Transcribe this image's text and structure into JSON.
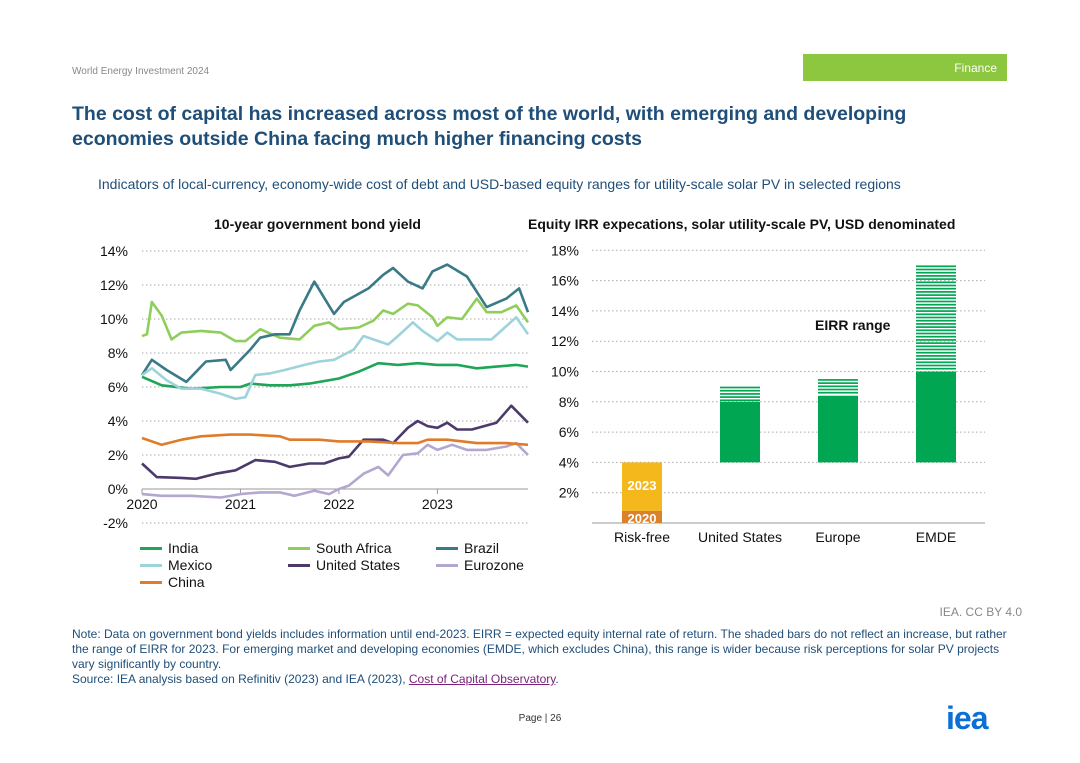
{
  "header": {
    "report": "World Energy Investment 2024",
    "section": "Finance"
  },
  "title": "The cost of capital has increased across most of the world, with emerging and developing economies outside China facing much higher financing costs",
  "subtitle": "Indicators of local-currency, economy-wide cost of debt and USD-based equity ranges for utility-scale solar PV in selected regions",
  "chart_data": [
    {
      "type": "line",
      "title": "10-year government bond yield",
      "ylim": [
        -2,
        14
      ],
      "yticks": [
        "14%",
        "12%",
        "10%",
        "8%",
        "6%",
        "4%",
        "2%",
        "0%",
        "-2%"
      ],
      "xticks": [
        "2020",
        "2021",
        "2022",
        "2023"
      ],
      "xlim": [
        2020,
        2023.92
      ],
      "series": [
        {
          "name": "India",
          "color": "#1ea557",
          "points": [
            [
              2020,
              6.6
            ],
            [
              2020.2,
              6.1
            ],
            [
              2020.5,
              5.9
            ],
            [
              2020.8,
              6.0
            ],
            [
              2021,
              6.0
            ],
            [
              2021.1,
              6.2
            ],
            [
              2021.3,
              6.1
            ],
            [
              2021.5,
              6.1
            ],
            [
              2021.7,
              6.2
            ],
            [
              2022,
              6.5
            ],
            [
              2022.2,
              6.9
            ],
            [
              2022.4,
              7.4
            ],
            [
              2022.6,
              7.3
            ],
            [
              2022.8,
              7.4
            ],
            [
              2023,
              7.3
            ],
            [
              2023.2,
              7.3
            ],
            [
              2023.4,
              7.1
            ],
            [
              2023.6,
              7.2
            ],
            [
              2023.8,
              7.3
            ],
            [
              2023.92,
              7.2
            ]
          ]
        },
        {
          "name": "South Africa",
          "color": "#8fce5c",
          "points": [
            [
              2020,
              9.0
            ],
            [
              2020.05,
              9.1
            ],
            [
              2020.1,
              11.0
            ],
            [
              2020.2,
              10.2
            ],
            [
              2020.3,
              8.8
            ],
            [
              2020.4,
              9.2
            ],
            [
              2020.6,
              9.3
            ],
            [
              2020.8,
              9.2
            ],
            [
              2020.95,
              8.7
            ],
            [
              2021.05,
              8.7
            ],
            [
              2021.2,
              9.4
            ],
            [
              2021.4,
              8.9
            ],
            [
              2021.6,
              8.8
            ],
            [
              2021.75,
              9.6
            ],
            [
              2021.9,
              9.8
            ],
            [
              2022,
              9.4
            ],
            [
              2022.2,
              9.5
            ],
            [
              2022.35,
              9.9
            ],
            [
              2022.45,
              10.5
            ],
            [
              2022.55,
              10.3
            ],
            [
              2022.7,
              10.9
            ],
            [
              2022.8,
              10.8
            ],
            [
              2022.95,
              10.1
            ],
            [
              2023,
              9.6
            ],
            [
              2023.1,
              10.1
            ],
            [
              2023.25,
              10.0
            ],
            [
              2023.4,
              11.2
            ],
            [
              2023.5,
              10.4
            ],
            [
              2023.65,
              10.4
            ],
            [
              2023.8,
              10.8
            ],
            [
              2023.92,
              9.8
            ]
          ]
        },
        {
          "name": "Brazil",
          "color": "#3a7a86",
          "points": [
            [
              2020,
              6.7
            ],
            [
              2020.1,
              7.6
            ],
            [
              2020.25,
              7.0
            ],
            [
              2020.45,
              6.3
            ],
            [
              2020.65,
              7.5
            ],
            [
              2020.85,
              7.6
            ],
            [
              2020.9,
              7.0
            ],
            [
              2021.1,
              8.2
            ],
            [
              2021.2,
              8.9
            ],
            [
              2021.35,
              9.1
            ],
            [
              2021.5,
              9.1
            ],
            [
              2021.6,
              10.5
            ],
            [
              2021.75,
              12.2
            ],
            [
              2021.95,
              10.3
            ],
            [
              2022.05,
              11.0
            ],
            [
              2022.3,
              11.8
            ],
            [
              2022.45,
              12.6
            ],
            [
              2022.55,
              13.0
            ],
            [
              2022.7,
              12.2
            ],
            [
              2022.85,
              11.8
            ],
            [
              2022.95,
              12.8
            ],
            [
              2023.1,
              13.2
            ],
            [
              2023.3,
              12.5
            ],
            [
              2023.5,
              10.7
            ],
            [
              2023.7,
              11.2
            ],
            [
              2023.83,
              11.8
            ],
            [
              2023.92,
              10.4
            ]
          ]
        },
        {
          "name": "Mexico",
          "color": "#9fd3dc",
          "points": [
            [
              2020,
              6.7
            ],
            [
              2020.1,
              7.1
            ],
            [
              2020.25,
              6.4
            ],
            [
              2020.4,
              5.9
            ],
            [
              2020.6,
              5.9
            ],
            [
              2020.8,
              5.6
            ],
            [
              2020.95,
              5.3
            ],
            [
              2021.05,
              5.4
            ],
            [
              2021.15,
              6.7
            ],
            [
              2021.3,
              6.8
            ],
            [
              2021.45,
              7.0
            ],
            [
              2021.65,
              7.3
            ],
            [
              2021.8,
              7.5
            ],
            [
              2021.95,
              7.6
            ],
            [
              2022.15,
              8.2
            ],
            [
              2022.25,
              9.0
            ],
            [
              2022.4,
              8.7
            ],
            [
              2022.5,
              8.5
            ],
            [
              2022.6,
              9.0
            ],
            [
              2022.75,
              9.8
            ],
            [
              2022.85,
              9.3
            ],
            [
              2023,
              8.7
            ],
            [
              2023.1,
              9.2
            ],
            [
              2023.2,
              8.8
            ],
            [
              2023.4,
              8.8
            ],
            [
              2023.55,
              8.8
            ],
            [
              2023.8,
              10.1
            ],
            [
              2023.92,
              9.1
            ]
          ]
        },
        {
          "name": "United States",
          "color": "#4b3a6b",
          "points": [
            [
              2020,
              1.5
            ],
            [
              2020.15,
              0.7
            ],
            [
              2020.4,
              0.65
            ],
            [
              2020.55,
              0.6
            ],
            [
              2020.75,
              0.9
            ],
            [
              2020.95,
              1.1
            ],
            [
              2021.15,
              1.7
            ],
            [
              2021.35,
              1.6
            ],
            [
              2021.5,
              1.3
            ],
            [
              2021.7,
              1.5
            ],
            [
              2021.85,
              1.5
            ],
            [
              2022,
              1.8
            ],
            [
              2022.1,
              1.9
            ],
            [
              2022.25,
              2.9
            ],
            [
              2022.45,
              2.9
            ],
            [
              2022.55,
              2.7
            ],
            [
              2022.7,
              3.6
            ],
            [
              2022.8,
              4.0
            ],
            [
              2022.9,
              3.7
            ],
            [
              2023,
              3.6
            ],
            [
              2023.1,
              3.9
            ],
            [
              2023.2,
              3.5
            ],
            [
              2023.35,
              3.5
            ],
            [
              2023.6,
              3.9
            ],
            [
              2023.75,
              4.9
            ],
            [
              2023.92,
              3.9
            ]
          ]
        },
        {
          "name": "Eurozone",
          "color": "#b3a7cf",
          "points": [
            [
              2020,
              -0.3
            ],
            [
              2020.2,
              -0.4
            ],
            [
              2020.5,
              -0.4
            ],
            [
              2020.8,
              -0.5
            ],
            [
              2021,
              -0.3
            ],
            [
              2021.2,
              -0.2
            ],
            [
              2021.4,
              -0.2
            ],
            [
              2021.55,
              -0.4
            ],
            [
              2021.75,
              -0.1
            ],
            [
              2021.9,
              -0.3
            ],
            [
              2022,
              0
            ],
            [
              2022.1,
              0.2
            ],
            [
              2022.25,
              0.9
            ],
            [
              2022.4,
              1.3
            ],
            [
              2022.5,
              0.8
            ],
            [
              2022.65,
              2.0
            ],
            [
              2022.8,
              2.1
            ],
            [
              2022.9,
              2.6
            ],
            [
              2023,
              2.3
            ],
            [
              2023.15,
              2.6
            ],
            [
              2023.3,
              2.3
            ],
            [
              2023.5,
              2.3
            ],
            [
              2023.7,
              2.5
            ],
            [
              2023.8,
              2.7
            ],
            [
              2023.92,
              2.0
            ]
          ]
        },
        {
          "name": "China",
          "color": "#e07b2a",
          "points": [
            [
              2020,
              3.0
            ],
            [
              2020.2,
              2.6
            ],
            [
              2020.4,
              2.9
            ],
            [
              2020.6,
              3.1
            ],
            [
              2020.9,
              3.2
            ],
            [
              2021.1,
              3.2
            ],
            [
              2021.4,
              3.1
            ],
            [
              2021.5,
              2.9
            ],
            [
              2021.8,
              2.9
            ],
            [
              2022,
              2.8
            ],
            [
              2022.3,
              2.8
            ],
            [
              2022.6,
              2.7
            ],
            [
              2022.8,
              2.7
            ],
            [
              2022.9,
              2.9
            ],
            [
              2023.1,
              2.9
            ],
            [
              2023.4,
              2.7
            ],
            [
              2023.7,
              2.7
            ],
            [
              2023.92,
              2.6
            ]
          ]
        }
      ]
    },
    {
      "type": "bar",
      "title": "Equity IRR expecations, solar utility-scale PV, USD denominated",
      "ylim": [
        0,
        18
      ],
      "yticks": [
        "18%",
        "16%",
        "14%",
        "12%",
        "10%",
        "8%",
        "6%",
        "4%",
        "2%"
      ],
      "categories": [
        "Risk-free",
        "United States",
        "Europe",
        "EMDE"
      ],
      "risk_free": {
        "2020": 0.8,
        "2023": 4.0,
        "labels": [
          "2023",
          "2020"
        ],
        "colors": {
          "2020": "#d9822b",
          "2023": "#f5b81c"
        }
      },
      "eirr": [
        {
          "category": "United States",
          "low": 4,
          "base_top": 8,
          "high": 9
        },
        {
          "category": "Europe",
          "low": 4,
          "base_top": 8.4,
          "high": 9.5
        },
        {
          "category": "EMDE",
          "low": 4,
          "base_top": 10,
          "high": 17
        }
      ],
      "annotation": "EIRR range",
      "color": "#00a651"
    }
  ],
  "credit": "IEA. CC BY 4.0",
  "note": "Note: Data on government bond yields includes information until end-2023. EIRR = expected equity internal rate of return. The shaded bars do not reflect an increase, but rather the range of EIRR for 2023. For emerging market and developing economies (EMDE, which excludes China), this range is wider because risk perceptions for solar PV projects vary significantly by country.",
  "source_prefix": "Source: IEA analysis based on Refinitiv (2023) and IEA (2023), ",
  "source_link": "Cost of Capital Observatory",
  "page": "Page | 26",
  "logo": "iea"
}
